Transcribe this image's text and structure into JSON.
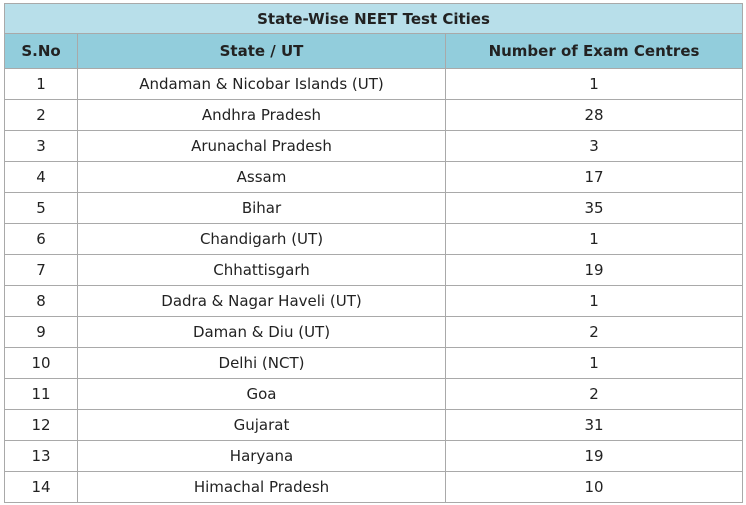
{
  "table": {
    "title": "State-Wise NEET Test Cities",
    "columns": [
      "S.No",
      "State / UT",
      "Number of Exam Centres"
    ],
    "rows": [
      [
        1,
        "Andaman & Nicobar Islands (UT)",
        1
      ],
      [
        2,
        "Andhra Pradesh",
        28
      ],
      [
        3,
        "Arunachal Pradesh",
        3
      ],
      [
        4,
        "Assam",
        17
      ],
      [
        5,
        "Bihar",
        35
      ],
      [
        6,
        "Chandigarh (UT)",
        1
      ],
      [
        7,
        "Chhattisgarh",
        19
      ],
      [
        8,
        "Dadra & Nagar Haveli (UT)",
        1
      ],
      [
        9,
        "Daman & Diu (UT)",
        2
      ],
      [
        10,
        "Delhi (NCT)",
        1
      ],
      [
        11,
        "Goa",
        2
      ],
      [
        12,
        "Gujarat",
        31
      ],
      [
        13,
        "Haryana",
        19
      ],
      [
        14,
        "Himachal Pradesh",
        10
      ]
    ]
  }
}
